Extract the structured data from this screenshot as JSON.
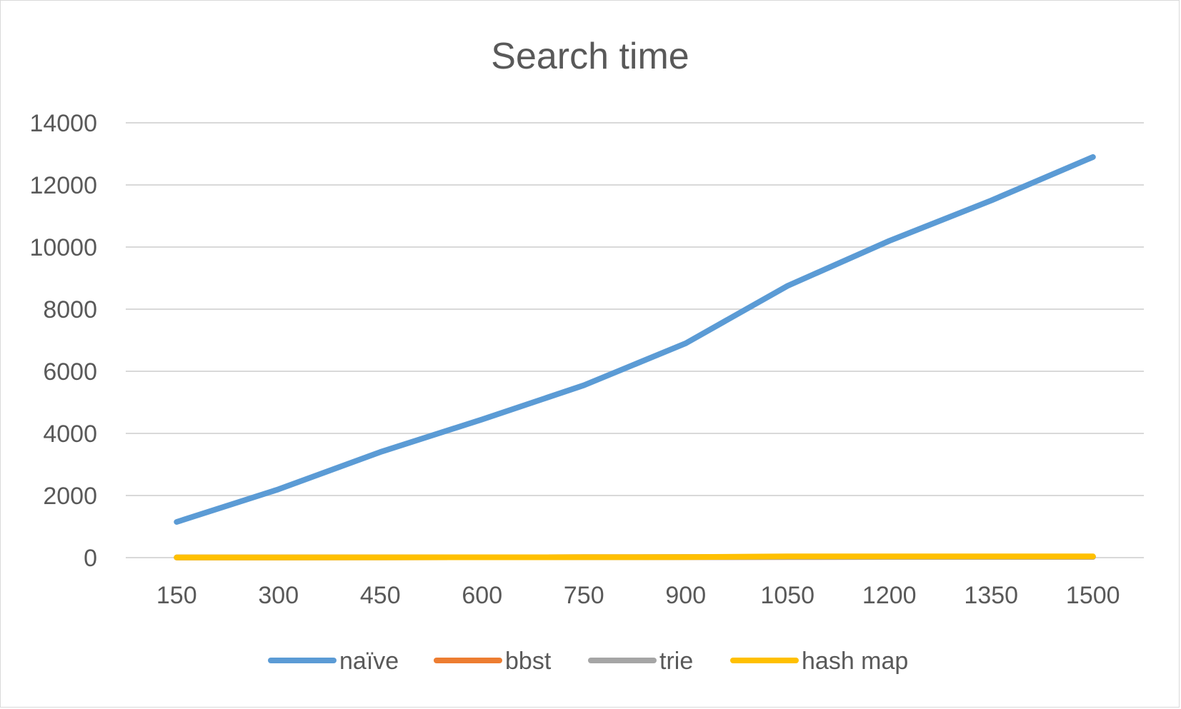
{
  "chart_data": {
    "type": "line",
    "title": "Search time",
    "xlabel": "",
    "ylabel": "",
    "categories": [
      "150",
      "300",
      "450",
      "600",
      "750",
      "900",
      "1050",
      "1200",
      "1350",
      "1500"
    ],
    "y_ticks": [
      "0",
      "2000",
      "4000",
      "6000",
      "8000",
      "10000",
      "12000",
      "14000"
    ],
    "ylim": [
      0,
      14000
    ],
    "grid": true,
    "legend_position": "bottom",
    "series": [
      {
        "name": "naïve",
        "color": "#5b9bd5",
        "values": [
          1150,
          2200,
          3400,
          4450,
          5550,
          6900,
          8750,
          10200,
          11500,
          12900
        ]
      },
      {
        "name": "bbst",
        "color": "#ed7d31",
        "values": [
          5,
          8,
          10,
          12,
          14,
          16,
          20,
          22,
          24,
          26
        ]
      },
      {
        "name": "trie",
        "color": "#a5a5a5",
        "values": [
          5,
          8,
          10,
          12,
          14,
          16,
          20,
          22,
          24,
          26
        ]
      },
      {
        "name": "hash map",
        "color": "#ffc000",
        "values": [
          5,
          8,
          10,
          12,
          14,
          16,
          40,
          40,
          40,
          40
        ]
      }
    ]
  }
}
